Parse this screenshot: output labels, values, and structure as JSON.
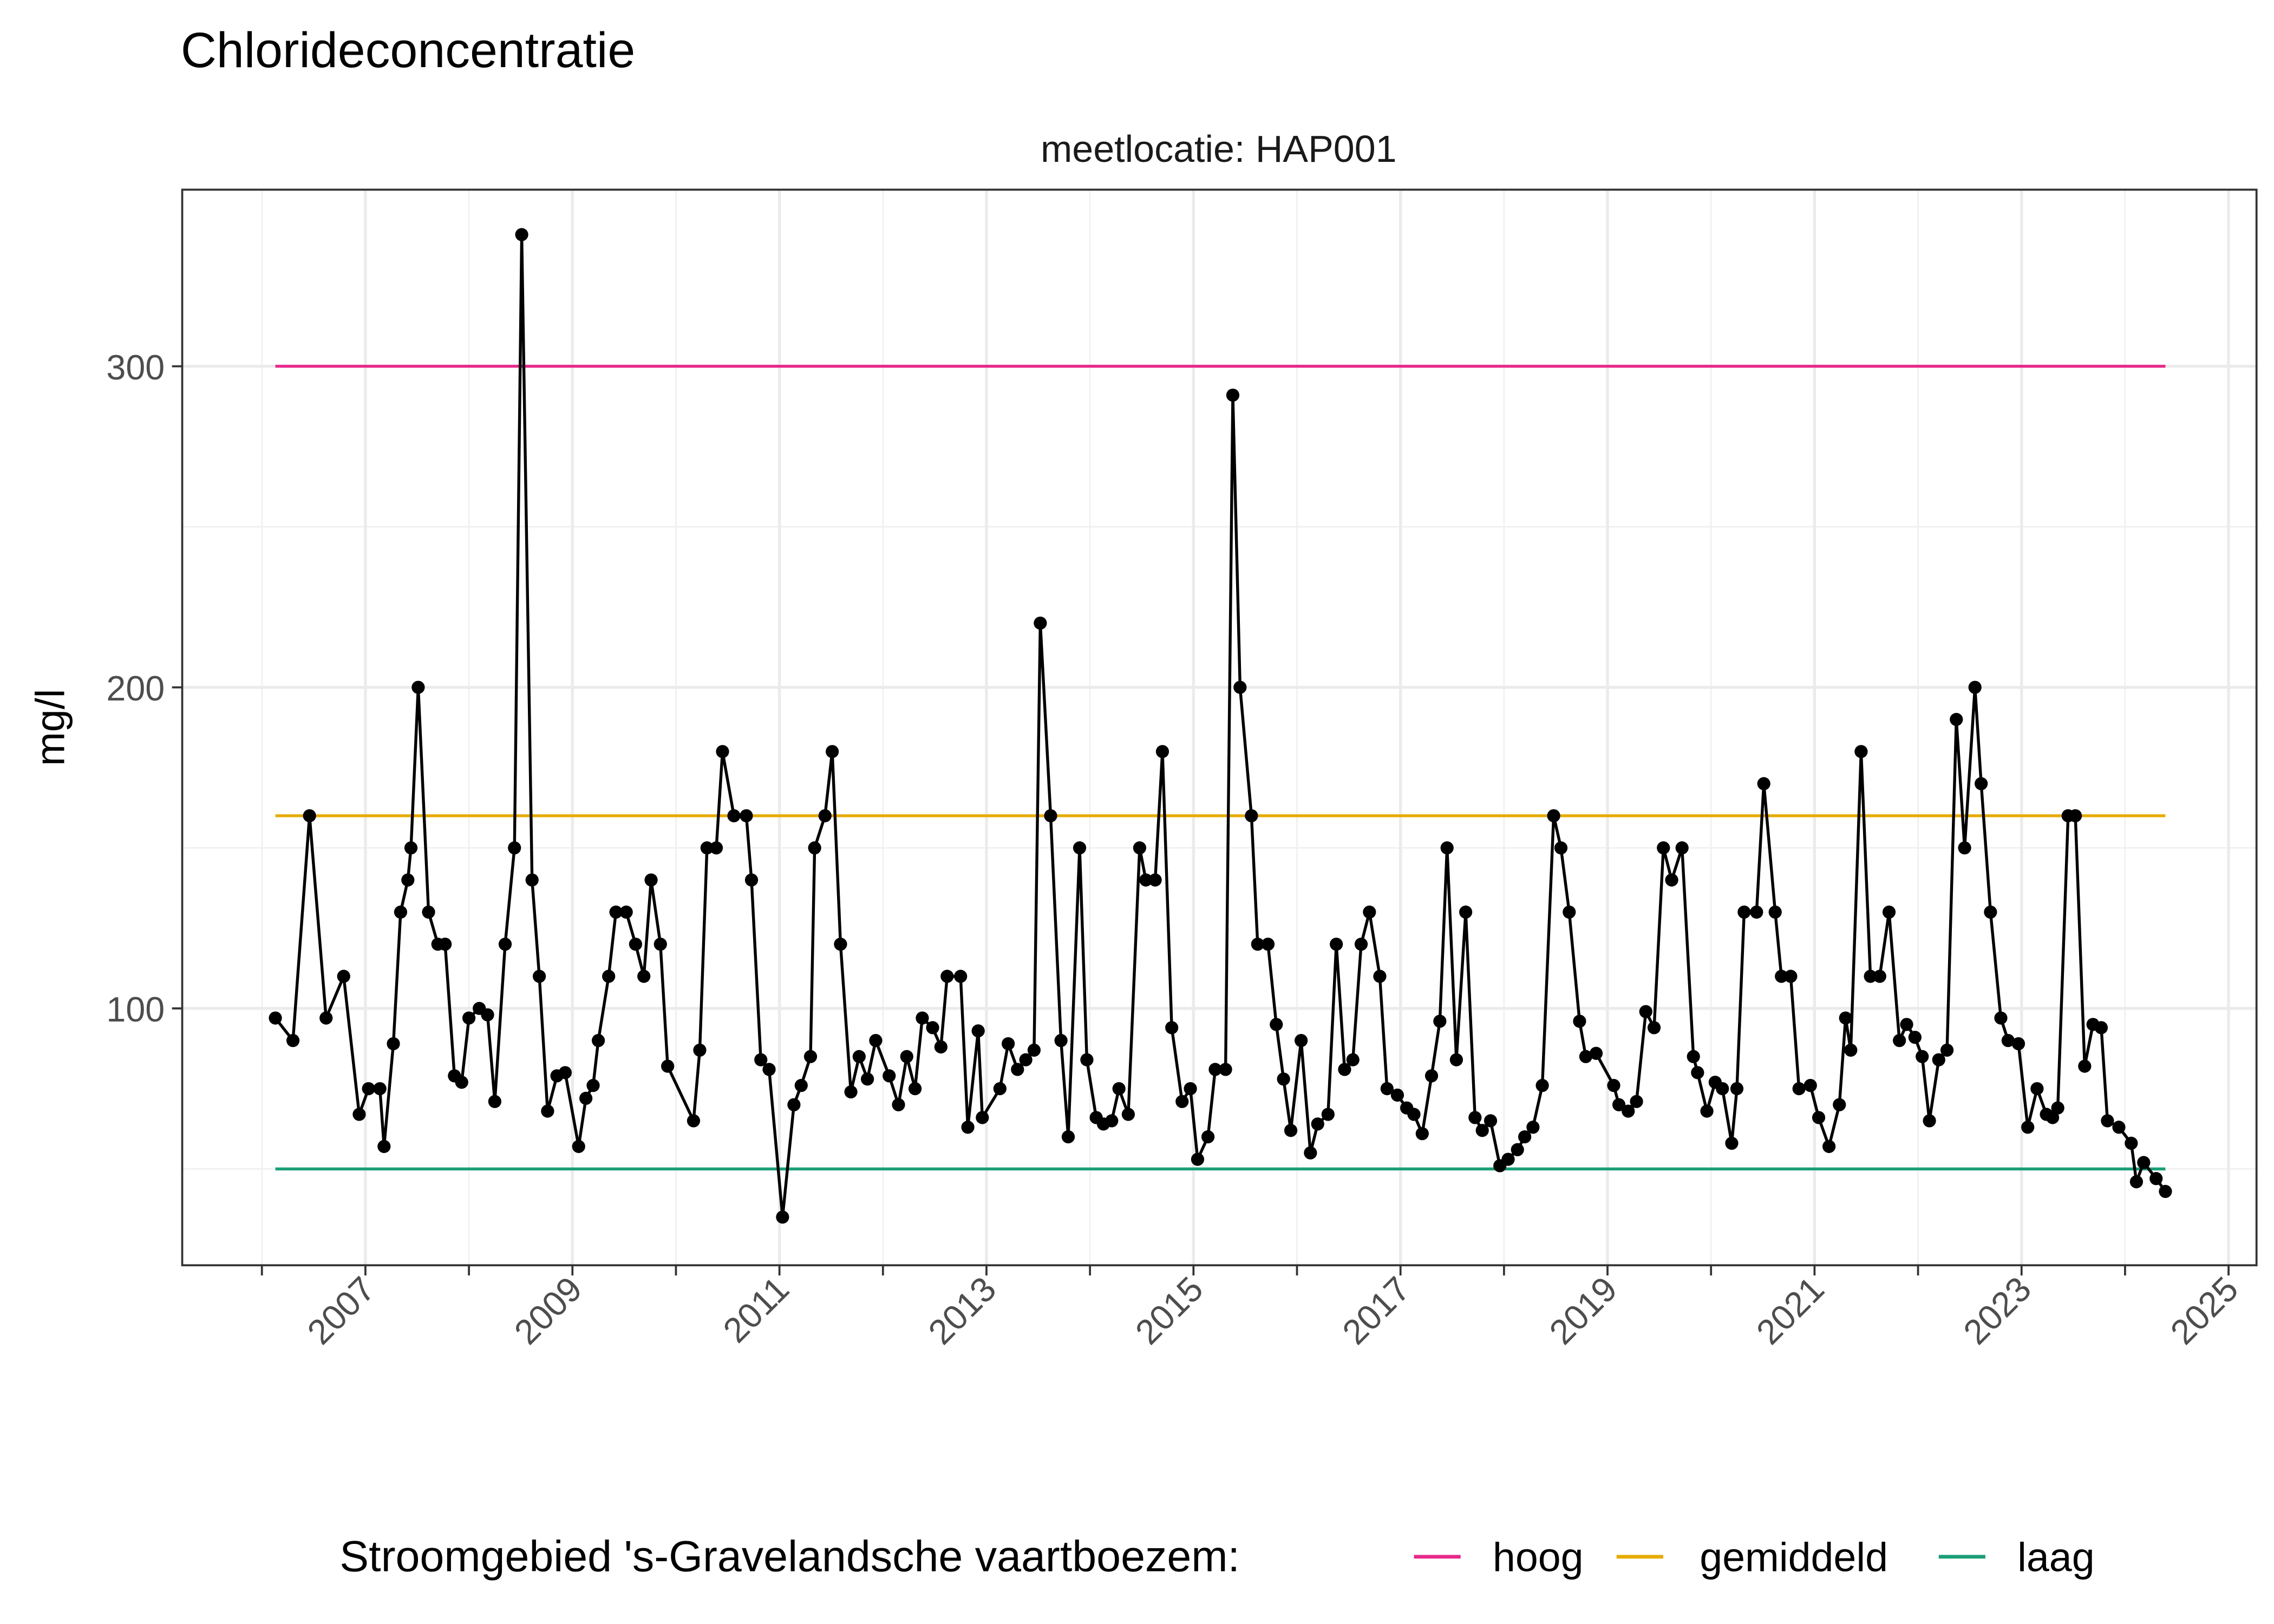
{
  "chart_data": {
    "type": "line",
    "title": "Chlorideconcentratie",
    "facet_label": "meetlocatie: HAP001",
    "xlabel": "",
    "ylabel": "mg/l",
    "xlim": [
      2005.23,
      2025.27
    ],
    "ylim": [
      20,
      355
    ],
    "grid": true,
    "x_ticks": [
      "2007",
      "2009",
      "2011",
      "2013",
      "2015",
      "2017",
      "2019",
      "2021",
      "2023",
      "2025"
    ],
    "y_ticks": [
      "100",
      "200",
      "300"
    ],
    "legend": {
      "position": "bottom",
      "title": "Stroomgebied 's-Gravelandsche vaartboezem:",
      "entries": [
        {
          "name": "hoog",
          "color": "#E7298A"
        },
        {
          "name": "gemiddeld",
          "color": "#E6AB02"
        },
        {
          "name": "laag",
          "color": "#1B9E77"
        }
      ]
    },
    "reference_lines": [
      {
        "name": "hoog",
        "value": 300,
        "x_start": 2006.13,
        "x_end": 2024.39,
        "color": "#E7298A"
      },
      {
        "name": "gemiddeld",
        "value": 160,
        "x_start": 2006.13,
        "x_end": 2024.39,
        "color": "#E6AB02"
      },
      {
        "name": "laag",
        "value": 50,
        "x_start": 2006.13,
        "x_end": 2024.39,
        "color": "#1B9E77"
      }
    ],
    "series_color": "#000000",
    "x": [
      2006.13,
      2006.3,
      2006.46,
      2006.62,
      2006.79,
      2006.94,
      2007.03,
      2007.14,
      2007.18,
      2007.27,
      2007.34,
      2007.41,
      2007.44,
      2007.51,
      2007.61,
      2007.7,
      2007.77,
      2007.86,
      2007.93,
      2008.0,
      2008.1,
      2008.18,
      2008.25,
      2008.35,
      2008.44,
      2008.51,
      2008.61,
      2008.68,
      2008.76,
      2008.85,
      2008.93,
      2009.06,
      2009.13,
      2009.2,
      2009.25,
      2009.35,
      2009.42,
      2009.52,
      2009.61,
      2009.69,
      2009.76,
      2009.85,
      2009.92,
      2010.17,
      2010.23,
      2010.3,
      2010.39,
      2010.45,
      2010.56,
      2010.68,
      2010.73,
      2010.82,
      2010.9,
      2011.03,
      2011.14,
      2011.21,
      2011.3,
      2011.34,
      2011.44,
      2011.51,
      2011.59,
      2011.69,
      2011.77,
      2011.85,
      2011.93,
      2012.06,
      2012.15,
      2012.23,
      2012.31,
      2012.38,
      2012.48,
      2012.56,
      2012.62,
      2012.75,
      2012.82,
      2012.92,
      2012.96,
      2013.13,
      2013.21,
      2013.3,
      2013.38,
      2013.46,
      2013.52,
      2013.62,
      2013.72,
      2013.79,
      2013.9,
      2013.97,
      2014.06,
      2014.13,
      2014.21,
      2014.28,
      2014.37,
      2014.48,
      2014.54,
      2014.63,
      2014.7,
      2014.79,
      2014.89,
      2014.97,
      2015.04,
      2015.14,
      2015.21,
      2015.31,
      2015.38,
      2015.45,
      2015.56,
      2015.62,
      2015.72,
      2015.8,
      2015.87,
      2015.94,
      2016.04,
      2016.13,
      2016.2,
      2016.3,
      2016.38,
      2016.46,
      2016.54,
      2016.62,
      2016.7,
      2016.8,
      2016.87,
      2016.97,
      2017.06,
      2017.13,
      2017.21,
      2017.3,
      2017.38,
      2017.45,
      2017.54,
      2017.63,
      2017.72,
      2017.79,
      2017.87,
      2017.96,
      2018.04,
      2018.13,
      2018.2,
      2018.28,
      2018.37,
      2018.48,
      2018.55,
      2018.63,
      2018.73,
      2018.79,
      2018.89,
      2019.06,
      2019.11,
      2019.2,
      2019.28,
      2019.37,
      2019.45,
      2019.54,
      2019.62,
      2019.72,
      2019.83,
      2019.87,
      2019.96,
      2020.04,
      2020.11,
      2020.2,
      2020.25,
      2020.32,
      2020.44,
      2020.51,
      2020.62,
      2020.68,
      2020.77,
      2020.85,
      2020.96,
      2021.04,
      2021.14,
      2021.24,
      2021.3,
      2021.35,
      2021.45,
      2021.54,
      2021.63,
      2021.72,
      2021.82,
      2021.89,
      2021.97,
      2022.04,
      2022.11,
      2022.2,
      2022.28,
      2022.37,
      2022.45,
      2022.55,
      2022.61,
      2022.7,
      2022.8,
      2022.87,
      2022.97,
      2023.06,
      2023.15,
      2023.24,
      2023.3,
      2023.35,
      2023.45,
      2023.52,
      2023.61,
      2023.69,
      2023.77,
      2023.83,
      2023.94,
      2024.06,
      2024.11,
      2024.18,
      2024.3,
      2024.39
    ],
    "y": [
      97,
      90,
      160,
      97,
      110,
      67,
      75,
      75,
      57,
      89,
      130,
      140,
      150,
      200,
      130,
      120,
      120,
      79,
      77,
      97,
      100,
      98,
      71,
      120,
      150,
      341,
      140,
      110,
      68,
      79,
      80,
      57,
      72,
      76,
      90,
      110,
      130,
      130,
      120,
      110,
      140,
      120,
      82,
      65,
      87,
      150,
      150,
      180,
      160,
      160,
      140,
      84,
      81,
      35,
      70,
      76,
      85,
      150,
      160,
      180,
      120,
      74,
      85,
      78,
      90,
      79,
      70,
      85,
      75,
      97,
      94,
      88,
      110,
      110,
      63,
      93,
      66,
      75,
      89,
      81,
      84,
      87,
      220,
      160,
      90,
      60,
      150,
      84,
      66,
      64,
      65,
      75,
      67,
      150,
      140,
      140,
      180,
      94,
      71,
      75,
      53,
      60,
      81,
      81,
      291,
      200,
      160,
      120,
      120,
      95,
      78,
      62,
      90,
      55,
      64,
      67,
      120,
      81,
      84,
      120,
      130,
      110,
      75,
      73,
      69,
      67,
      61,
      79,
      96,
      150,
      84,
      130,
      66,
      62,
      65,
      51,
      53,
      56,
      60,
      63,
      76,
      160,
      150,
      130,
      96,
      85,
      86,
      76,
      70,
      68,
      71,
      99,
      94,
      150,
      140,
      150,
      85,
      80,
      68,
      77,
      75,
      58,
      75,
      130,
      130,
      170,
      130,
      110,
      110,
      75,
      76,
      66,
      57,
      70,
      97,
      87,
      180,
      110,
      110,
      130,
      90,
      95,
      91,
      85,
      65,
      84,
      87,
      190,
      150,
      200,
      170,
      130,
      97,
      90,
      89,
      63,
      75,
      67,
      66,
      69,
      160,
      160,
      82,
      95,
      94,
      65,
      63,
      58,
      46,
      52,
      47,
      43
    ]
  }
}
